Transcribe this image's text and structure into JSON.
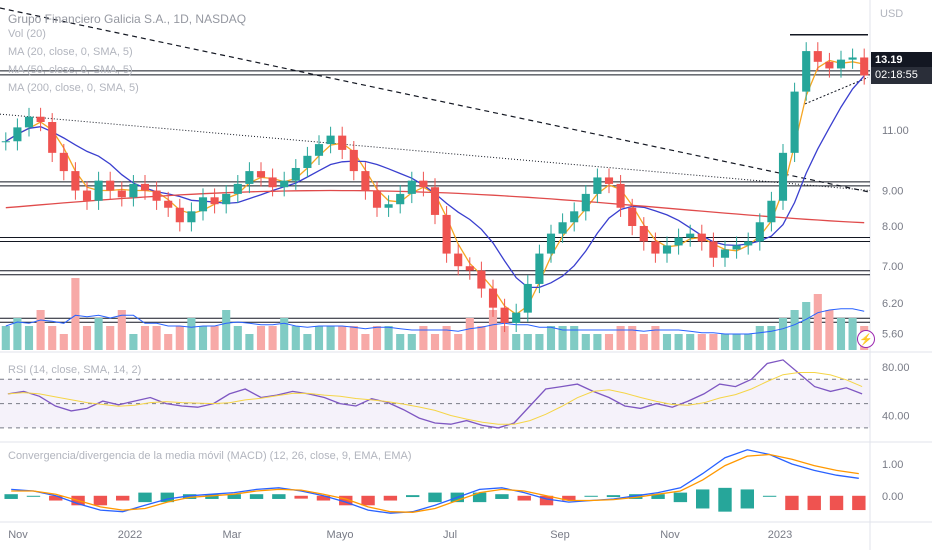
{
  "chart_data": {
    "type": "candlestick",
    "currency": "USD",
    "x_tick_labels": [
      "Nov",
      "2022",
      "Mar",
      "Mayo",
      "Jul",
      "Sep",
      "Nov",
      "2023"
    ],
    "legends": {
      "title": "Grupo Financiero Galicia S.A., 1D, NASDAQ",
      "volume": "Vol (20)",
      "ma20": "MA (20, close, 0, SMA, 5)",
      "ma50": "MA (50, close, 0, SMA, 5)",
      "ma200": "MA (200, close, 0, SMA, 5)",
      "rsi": "RSI (14, close, SMA, 14, 2)",
      "macd": "Convergencia/divergencia de la media móvil (MACD) (12, 26, close, 9, EMA, EMA)"
    },
    "price_axis": {
      "scale": "log",
      "range": [
        5.3,
        16.5
      ],
      "ticks": [
        "5.60",
        "6.20",
        "7.00",
        "8.00",
        "9.00",
        "11.00"
      ],
      "last_price": "13.19",
      "countdown": "02:18:55"
    },
    "rsi_axis": {
      "range": [
        20,
        90
      ],
      "ticks": [
        "80.00",
        "40.00"
      ],
      "band": [
        30,
        70
      ]
    },
    "macd_axis": {
      "range": [
        -0.7,
        1.6
      ],
      "ticks": [
        "1.00",
        "0.00"
      ]
    },
    "price_series": [
      10.6,
      11.1,
      11.5,
      11.3,
      10.2,
      9.6,
      9.0,
      8.7,
      9.3,
      9.0,
      8.8,
      9.2,
      9.0,
      8.7,
      8.5,
      8.1,
      8.4,
      8.8,
      8.6,
      8.9,
      9.2,
      9.6,
      9.4,
      9.1,
      9.3,
      9.7,
      10.1,
      10.5,
      10.8,
      10.3,
      9.6,
      9.0,
      8.5,
      8.6,
      8.9,
      9.3,
      9.1,
      8.3,
      7.3,
      7.0,
      6.9,
      6.5,
      6.1,
      5.8,
      6.0,
      6.6,
      7.3,
      7.8,
      8.1,
      8.4,
      8.9,
      9.4,
      9.2,
      8.5,
      8.0,
      7.6,
      7.3,
      7.5,
      7.7,
      7.8,
      7.6,
      7.2,
      7.4,
      7.5,
      7.6,
      8.1,
      8.7,
      10.2,
      12.5,
      14.3,
      13.8,
      13.5,
      13.9,
      14.0,
      13.19
    ],
    "volume_series": [
      3,
      4,
      3,
      5,
      3,
      2,
      9,
      3,
      4,
      3,
      5,
      2,
      3,
      3,
      2,
      3,
      4,
      3,
      3,
      5,
      3,
      2,
      3,
      3,
      4,
      3,
      2,
      3,
      3,
      3,
      3,
      2,
      3,
      3,
      2,
      2,
      3,
      2,
      3,
      2,
      4,
      3,
      5,
      3,
      2,
      2,
      2,
      3,
      3,
      3,
      2,
      2,
      2,
      3,
      3,
      2,
      3,
      2,
      2,
      2,
      2,
      2,
      2,
      2,
      2,
      3,
      3,
      4,
      5,
      6,
      7,
      5,
      4,
      4,
      3
    ],
    "rsi_series": [
      58,
      60,
      56,
      48,
      44,
      46,
      52,
      49,
      52,
      55,
      50,
      48,
      47,
      50,
      58,
      62,
      55,
      57,
      60,
      58,
      55,
      50,
      48,
      54,
      51,
      45,
      38,
      34,
      33,
      36,
      32,
      30,
      34,
      48,
      62,
      64,
      66,
      60,
      55,
      48,
      46,
      50,
      47,
      52,
      58,
      66,
      64,
      70,
      83,
      86,
      75,
      64,
      60,
      63,
      58
    ],
    "macd_series": {
      "macd": [
        0.2,
        0.15,
        0.0,
        -0.25,
        -0.45,
        -0.5,
        -0.3,
        -0.1,
        0.0,
        0.05,
        0.1,
        0.2,
        0.25,
        0.15,
        0.0,
        -0.2,
        -0.45,
        -0.55,
        -0.5,
        -0.3,
        -0.05,
        0.2,
        0.25,
        0.1,
        -0.1,
        -0.2,
        -0.15,
        -0.1,
        0.0,
        0.1,
        0.25,
        0.7,
        1.2,
        1.45,
        1.3,
        1.0,
        0.8,
        0.65,
        0.55
      ],
      "signal": [
        0.15,
        0.15,
        0.05,
        -0.15,
        -0.35,
        -0.45,
        -0.4,
        -0.2,
        -0.05,
        0.0,
        0.05,
        0.15,
        0.2,
        0.18,
        0.05,
        -0.1,
        -0.35,
        -0.5,
        -0.52,
        -0.4,
        -0.15,
        0.1,
        0.2,
        0.15,
        0.0,
        -0.15,
        -0.15,
        -0.12,
        -0.05,
        0.05,
        0.15,
        0.5,
        0.95,
        1.25,
        1.3,
        1.15,
        0.95,
        0.8,
        0.7
      ]
    }
  },
  "colors": {
    "up": "#26a69a",
    "down": "#ef5350",
    "ma20": "#f5a623",
    "ma50": "#3a3fcf",
    "ma200": "#e04b4b",
    "rsi": "#7e57c2",
    "macd": "#2962ff",
    "signal": "#ff9800"
  }
}
